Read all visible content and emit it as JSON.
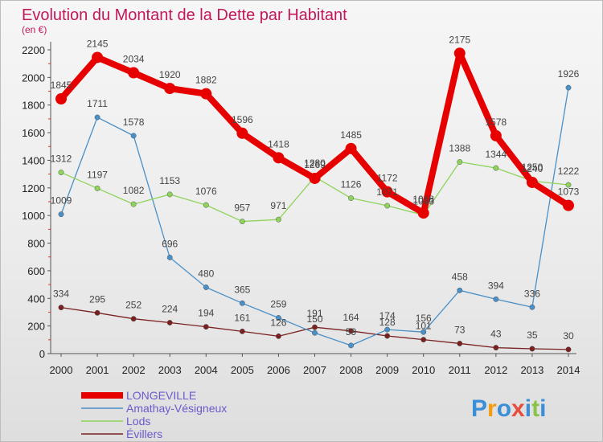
{
  "chart_data": {
    "type": "line",
    "title": "Evolution du Montant de la Dette par Habitant",
    "unit_label": "(en €)",
    "x": [
      "2000",
      "2001",
      "2002",
      "2003",
      "2004",
      "2005",
      "2006",
      "2007",
      "2008",
      "2009",
      "2010",
      "2011",
      "2012",
      "2013",
      "2014"
    ],
    "ylim": [
      0,
      2200
    ],
    "yticks": [
      0,
      200,
      400,
      600,
      800,
      1000,
      1200,
      1400,
      1600,
      1800,
      2000,
      2200
    ],
    "grid": false,
    "legend": "bottom-left",
    "series": [
      {
        "name": "LONGEVILLE",
        "color": "#e60000",
        "values": [
          1845,
          2145,
          2034,
          1920,
          1882,
          1596,
          1418,
          1269,
          1485,
          1172,
          1018,
          2175,
          1578,
          1240,
          1073
        ]
      },
      {
        "name": "Amathay-Vésigneux",
        "color": "#4a90c8",
        "values": [
          1009,
          1711,
          1578,
          696,
          480,
          365,
          259,
          150,
          59,
          174,
          156,
          458,
          394,
          336,
          1926
        ]
      },
      {
        "name": "Lods",
        "color": "#8ed35a",
        "values": [
          1312,
          1197,
          1082,
          1153,
          1076,
          957,
          971,
          1280,
          1126,
          1071,
          1003,
          1388,
          1344,
          1250,
          1222
        ]
      },
      {
        "name": "Évillers",
        "color": "#7a2020",
        "values": [
          334,
          295,
          252,
          224,
          194,
          161,
          126,
          191,
          164,
          128,
          101,
          73,
          43,
          35,
          30
        ]
      }
    ]
  },
  "logo": {
    "letters": [
      "P",
      "r",
      "o",
      "x",
      "i",
      "t",
      "i"
    ],
    "colors": [
      "#3a8fd8",
      "#f39c12",
      "#3a8fd8",
      "#e74c3c",
      "#3a8fd8",
      "#8bc34a",
      "#3a8fd8"
    ]
  }
}
